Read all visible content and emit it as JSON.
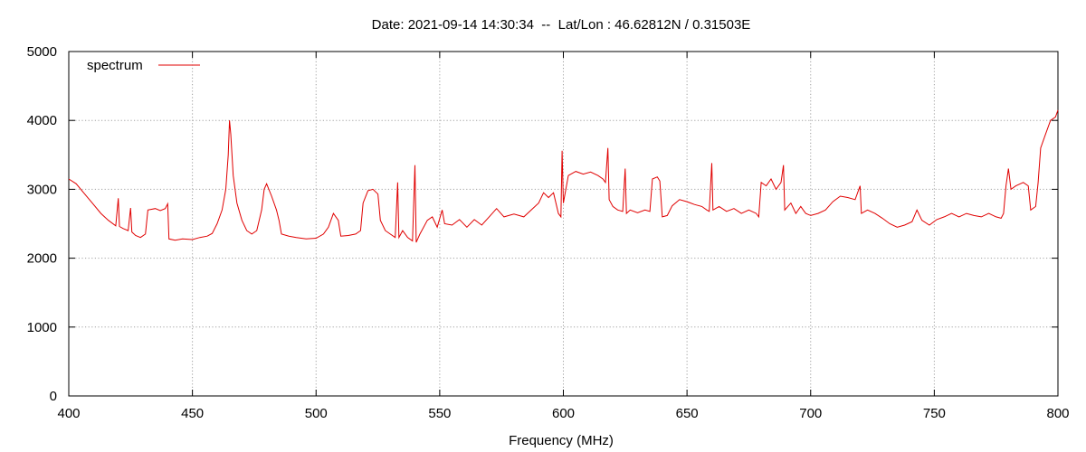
{
  "chart_data": {
    "type": "line",
    "title": "Date: 2021-09-14 14:30:34  --  Lat/Lon : 46.62812N / 0.31503E",
    "xlabel": "Frequency (MHz)",
    "ylabel": "",
    "xlim": [
      400,
      800
    ],
    "ylim": [
      0,
      5000
    ],
    "xticks": [
      400,
      450,
      500,
      550,
      600,
      650,
      700,
      750,
      800
    ],
    "yticks": [
      0,
      1000,
      2000,
      3000,
      4000,
      5000
    ],
    "grid": true,
    "legend_position": "top-left",
    "series": [
      {
        "name": "spectrum",
        "color": "#e00000",
        "points": [
          [
            400,
            3150
          ],
          [
            403,
            3080
          ],
          [
            406,
            2950
          ],
          [
            410,
            2780
          ],
          [
            413,
            2650
          ],
          [
            416,
            2550
          ],
          [
            419,
            2470
          ],
          [
            420,
            2870
          ],
          [
            420.5,
            2460
          ],
          [
            422,
            2430
          ],
          [
            424,
            2400
          ],
          [
            425,
            2730
          ],
          [
            425.5,
            2380
          ],
          [
            427,
            2330
          ],
          [
            429,
            2300
          ],
          [
            431,
            2350
          ],
          [
            432,
            2700
          ],
          [
            435,
            2720
          ],
          [
            437,
            2690
          ],
          [
            439,
            2720
          ],
          [
            440,
            2790
          ],
          [
            440.5,
            2280
          ],
          [
            443,
            2260
          ],
          [
            446,
            2280
          ],
          [
            450,
            2270
          ],
          [
            453,
            2300
          ],
          [
            456,
            2320
          ],
          [
            458,
            2360
          ],
          [
            460,
            2500
          ],
          [
            462,
            2700
          ],
          [
            463.5,
            3000
          ],
          [
            464.5,
            3500
          ],
          [
            465,
            4000
          ],
          [
            465.5,
            3800
          ],
          [
            466.5,
            3200
          ],
          [
            468,
            2800
          ],
          [
            470,
            2550
          ],
          [
            472,
            2400
          ],
          [
            474,
            2350
          ],
          [
            476,
            2400
          ],
          [
            478,
            2700
          ],
          [
            479,
            3000
          ],
          [
            480,
            3080
          ],
          [
            482,
            2900
          ],
          [
            484,
            2700
          ],
          [
            485,
            2550
          ],
          [
            486,
            2350
          ],
          [
            489,
            2320
          ],
          [
            492,
            2300
          ],
          [
            496,
            2280
          ],
          [
            500,
            2290
          ],
          [
            503,
            2350
          ],
          [
            505,
            2450
          ],
          [
            507,
            2650
          ],
          [
            509,
            2550
          ],
          [
            510,
            2320
          ],
          [
            513,
            2330
          ],
          [
            516,
            2350
          ],
          [
            518,
            2400
          ],
          [
            519,
            2800
          ],
          [
            521,
            2980
          ],
          [
            523,
            3000
          ],
          [
            525,
            2930
          ],
          [
            526,
            2550
          ],
          [
            528,
            2400
          ],
          [
            530,
            2350
          ],
          [
            532,
            2300
          ],
          [
            533,
            3100
          ],
          [
            533.5,
            2300
          ],
          [
            535,
            2400
          ],
          [
            537,
            2300
          ],
          [
            539,
            2250
          ],
          [
            540,
            3350
          ],
          [
            540.5,
            2230
          ],
          [
            542,
            2350
          ],
          [
            545,
            2550
          ],
          [
            547,
            2600
          ],
          [
            549,
            2450
          ],
          [
            551,
            2700
          ],
          [
            552,
            2500
          ],
          [
            555,
            2480
          ],
          [
            558,
            2560
          ],
          [
            561,
            2450
          ],
          [
            564,
            2560
          ],
          [
            567,
            2480
          ],
          [
            570,
            2600
          ],
          [
            573,
            2720
          ],
          [
            576,
            2600
          ],
          [
            580,
            2640
          ],
          [
            584,
            2600
          ],
          [
            587,
            2700
          ],
          [
            590,
            2800
          ],
          [
            592,
            2950
          ],
          [
            594,
            2880
          ],
          [
            596,
            2950
          ],
          [
            598,
            2650
          ],
          [
            599,
            2600
          ],
          [
            599.5,
            3560
          ],
          [
            600,
            2800
          ],
          [
            602,
            3200
          ],
          [
            605,
            3260
          ],
          [
            608,
            3220
          ],
          [
            611,
            3250
          ],
          [
            614,
            3200
          ],
          [
            616,
            3150
          ],
          [
            617,
            3100
          ],
          [
            618,
            3600
          ],
          [
            618.5,
            2850
          ],
          [
            620,
            2750
          ],
          [
            622,
            2700
          ],
          [
            624,
            2680
          ],
          [
            625,
            3300
          ],
          [
            625.5,
            2650
          ],
          [
            627,
            2700
          ],
          [
            630,
            2660
          ],
          [
            633,
            2700
          ],
          [
            635,
            2680
          ],
          [
            636,
            3150
          ],
          [
            638,
            3180
          ],
          [
            639,
            3120
          ],
          [
            640,
            2600
          ],
          [
            642,
            2620
          ],
          [
            644,
            2760
          ],
          [
            647,
            2850
          ],
          [
            650,
            2820
          ],
          [
            653,
            2780
          ],
          [
            656,
            2750
          ],
          [
            658,
            2700
          ],
          [
            659,
            2680
          ],
          [
            660,
            3380
          ],
          [
            660.5,
            2700
          ],
          [
            663,
            2750
          ],
          [
            666,
            2680
          ],
          [
            669,
            2720
          ],
          [
            672,
            2650
          ],
          [
            675,
            2700
          ],
          [
            678,
            2650
          ],
          [
            679,
            2600
          ],
          [
            680,
            3100
          ],
          [
            682,
            3050
          ],
          [
            684,
            3150
          ],
          [
            686,
            3000
          ],
          [
            688,
            3100
          ],
          [
            689,
            3350
          ],
          [
            689.5,
            2700
          ],
          [
            692,
            2800
          ],
          [
            694,
            2650
          ],
          [
            696,
            2750
          ],
          [
            698,
            2650
          ],
          [
            700,
            2620
          ],
          [
            703,
            2650
          ],
          [
            706,
            2700
          ],
          [
            709,
            2820
          ],
          [
            712,
            2900
          ],
          [
            715,
            2880
          ],
          [
            718,
            2850
          ],
          [
            720,
            3050
          ],
          [
            720.5,
            2650
          ],
          [
            723,
            2700
          ],
          [
            726,
            2650
          ],
          [
            729,
            2580
          ],
          [
            732,
            2500
          ],
          [
            735,
            2450
          ],
          [
            738,
            2480
          ],
          [
            741,
            2530
          ],
          [
            743,
            2700
          ],
          [
            745,
            2550
          ],
          [
            748,
            2480
          ],
          [
            751,
            2560
          ],
          [
            754,
            2600
          ],
          [
            757,
            2650
          ],
          [
            760,
            2600
          ],
          [
            763,
            2650
          ],
          [
            766,
            2620
          ],
          [
            769,
            2600
          ],
          [
            772,
            2650
          ],
          [
            775,
            2600
          ],
          [
            777,
            2580
          ],
          [
            778,
            2650
          ],
          [
            779,
            3050
          ],
          [
            780,
            3300
          ],
          [
            781,
            3000
          ],
          [
            783,
            3050
          ],
          [
            786,
            3100
          ],
          [
            788,
            3050
          ],
          [
            789,
            2700
          ],
          [
            791,
            2750
          ],
          [
            792,
            3100
          ],
          [
            793,
            3600
          ],
          [
            795,
            3800
          ],
          [
            797,
            4000
          ],
          [
            799,
            4050
          ],
          [
            800,
            4150
          ]
        ]
      }
    ]
  }
}
